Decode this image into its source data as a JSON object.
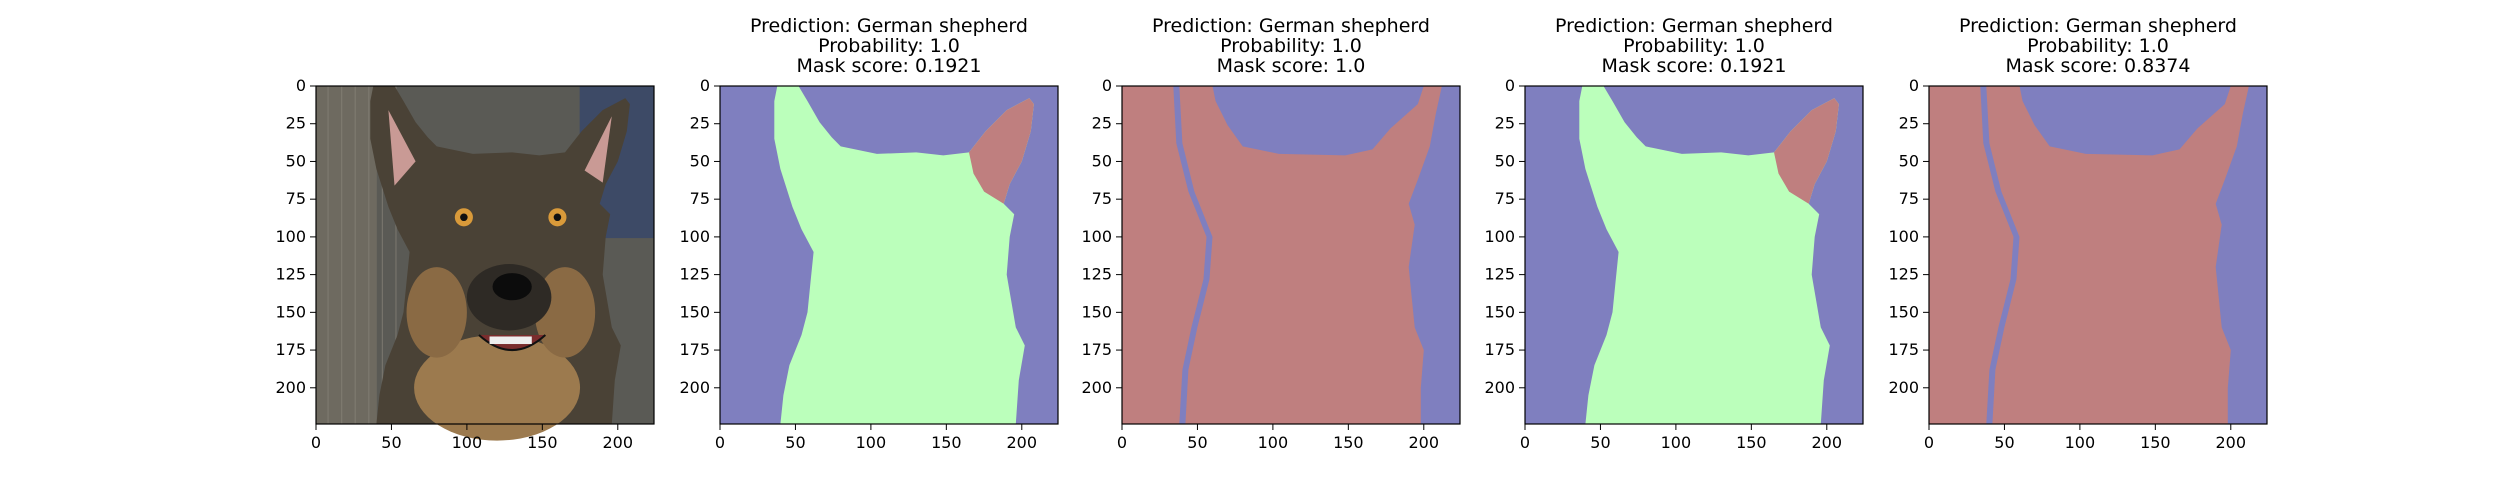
{
  "image_extent": {
    "x": [
      0,
      224
    ],
    "y": [
      224,
      0
    ]
  },
  "x_ticks": [
    "0",
    "50",
    "100",
    "150",
    "200"
  ],
  "y_ticks": [
    "0",
    "25",
    "50",
    "75",
    "100",
    "125",
    "150",
    "175",
    "200"
  ],
  "colors": {
    "background_class": "#7f7fbf",
    "foreground_green": "#bbffbb",
    "foreground_red": "#bf7f7f",
    "photo_bg": "#5a5a55"
  },
  "panels": [
    {
      "type": "photo",
      "icon": "german-shepherd-photo"
    },
    {
      "type": "mask",
      "variant": "green-body-red-ear",
      "title_lines": [
        "Prediction: German shepherd",
        "Probability: 1.0",
        "Mask score: 0.1921"
      ]
    },
    {
      "type": "mask",
      "variant": "red-dominant",
      "title_lines": [
        "Prediction: German shepherd",
        "Probability: 1.0",
        "Mask score: 1.0"
      ]
    },
    {
      "type": "mask",
      "variant": "green-body-red-ear",
      "title_lines": [
        "Prediction: German shepherd",
        "Probability: 1.0",
        "Mask score: 0.1921"
      ]
    },
    {
      "type": "mask",
      "variant": "red-dominant",
      "title_lines": [
        "Prediction: German shepherd",
        "Probability: 1.0",
        "Mask score: 0.8374"
      ]
    }
  ]
}
